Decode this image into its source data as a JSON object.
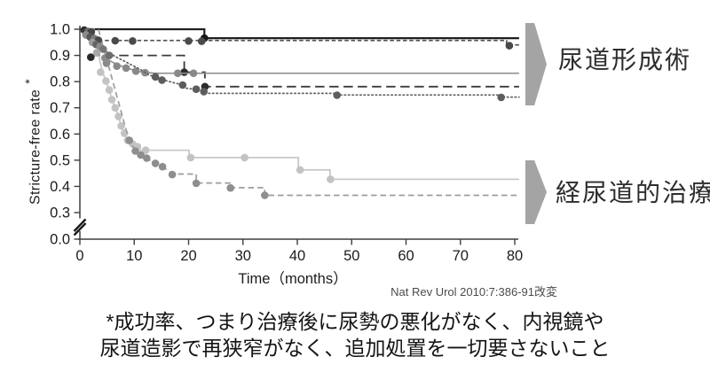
{
  "figure": {
    "y_axis_label": "Stricture-free rate",
    "y_axis_asterisk": "*",
    "x_axis_label": "Time（months）",
    "citation": "Nat Rev Urol 2010:7:386-91改変",
    "group_labels": {
      "upper": "尿道形成術",
      "lower": "経尿道的治療"
    },
    "footnote_line1": "*成功率、つまり治療後に尿勢の悪化がなく、内視鏡や",
    "footnote_line2": "尿道造影で再狭窄がなく、追加処置を一切要さないこと"
  },
  "chart_data": {
    "type": "line",
    "subtype": "kaplan-meier-step-curves",
    "title": "",
    "xlabel": "Time（months）",
    "ylabel": "Stricture-free rate *",
    "x_ticks": [
      {
        "label": "0",
        "value": 0
      },
      {
        "label": "10",
        "value": 10
      },
      {
        "label": "20",
        "value": 20
      },
      {
        "label": "30",
        "value": 30
      },
      {
        "label": "40",
        "value": 40
      },
      {
        "label": "50",
        "value": 50
      },
      {
        "label": "60",
        "value": 60
      },
      {
        "label": "70",
        "value": 70
      },
      {
        "label": "80",
        "value": 80
      }
    ],
    "y_ticks": [
      {
        "label": "1.0",
        "value": 1.0
      },
      {
        "label": "0.9",
        "value": 0.9
      },
      {
        "label": "0.8",
        "value": 0.8
      },
      {
        "label": "0.7",
        "value": 0.7
      },
      {
        "label": "0.6",
        "value": 0.6
      },
      {
        "label": "0.5",
        "value": 0.5
      },
      {
        "label": "0.4",
        "value": 0.4
      },
      {
        "label": "0.3",
        "value": 0.3
      },
      {
        "label": "0.0",
        "value": 0.0
      }
    ],
    "axis_break": "y-axis broken between 0.0 and 0.3",
    "xlim": [
      0,
      81
    ],
    "grid": false,
    "legend": "none (groups annotated with arrows: upper cluster = 尿道形成術, lower cluster = 経尿道的治療)",
    "series": [
      {
        "name": "urethroplasty-a",
        "group": "尿道形成術",
        "style": "solid",
        "color": "#1f1f1f",
        "width": 2.2,
        "marker_color": "#161616",
        "steps": [
          [
            0,
            1.0
          ],
          [
            22.9,
            1.0
          ],
          [
            22.9,
            0.966
          ],
          [
            80.8,
            0.966
          ]
        ],
        "markers": [
          [
            22.9,
            0.966
          ]
        ]
      },
      {
        "name": "urethroplasty-b",
        "group": "尿道形成術",
        "style": "dash-short",
        "color": "#4e4e4e",
        "width": 1.7,
        "marker_color": "#4a4a4a",
        "steps": [
          [
            0.5,
            1.0
          ],
          [
            1.2,
            0.995
          ],
          [
            1.8,
            0.988
          ],
          [
            2.4,
            0.978
          ],
          [
            3.0,
            0.968
          ],
          [
            3.6,
            0.957
          ],
          [
            78.5,
            0.957
          ],
          [
            78.5,
            0.94
          ],
          [
            80.8,
            0.94
          ]
        ],
        "markers": [
          [
            6.5,
            0.956
          ],
          [
            9.7,
            0.955
          ],
          [
            20.0,
            0.955
          ],
          [
            22.4,
            0.954
          ],
          [
            79.0,
            0.937
          ]
        ]
      },
      {
        "name": "urethroplasty-c",
        "group": "尿道形成術",
        "style": "dash-long",
        "color": "#3c3c3c",
        "width": 1.8,
        "marker_color": "#2a2a2a",
        "steps": [
          [
            2.0,
            0.9
          ],
          [
            19.2,
            0.9
          ],
          [
            19.2,
            0.836
          ],
          [
            23.0,
            0.836
          ],
          [
            23.0,
            0.781
          ],
          [
            80.8,
            0.781
          ]
        ],
        "markers": [
          [
            2.0,
            0.893
          ],
          [
            19.2,
            0.836
          ],
          [
            23.0,
            0.781
          ]
        ]
      },
      {
        "name": "urethroplasty-d",
        "group": "尿道形成術",
        "style": "solid",
        "color": "#8f8f8f",
        "width": 1.7,
        "marker_color": "#898989",
        "steps": [
          [
            0.4,
            1.0
          ],
          [
            1.0,
            0.988
          ],
          [
            1.6,
            0.975
          ],
          [
            2.2,
            0.962
          ],
          [
            2.8,
            0.95
          ],
          [
            3.4,
            0.938
          ],
          [
            4.0,
            0.925
          ],
          [
            4.6,
            0.91
          ],
          [
            4.9,
            0.888
          ],
          [
            6.0,
            0.874
          ],
          [
            7.0,
            0.864
          ],
          [
            8.5,
            0.853
          ],
          [
            10.3,
            0.841
          ],
          [
            12.0,
            0.835
          ],
          [
            14.0,
            0.832
          ],
          [
            80.8,
            0.832
          ]
        ],
        "markers": [
          [
            4.9,
            0.87
          ],
          [
            6.8,
            0.859
          ],
          [
            8.5,
            0.852
          ],
          [
            10.3,
            0.84
          ],
          [
            12.0,
            0.834
          ],
          [
            18.0,
            0.832
          ],
          [
            20.9,
            0.832
          ]
        ]
      },
      {
        "name": "urethroplasty-e",
        "group": "尿道形成術",
        "style": "dotted",
        "color": "#616161",
        "width": 1.7,
        "marker_color": "#5d5d5d",
        "steps": [
          [
            1.6,
            0.972
          ],
          [
            2.6,
            0.948
          ],
          [
            3.6,
            0.93
          ],
          [
            5.0,
            0.912
          ],
          [
            6.5,
            0.896
          ],
          [
            8.0,
            0.88
          ],
          [
            9.5,
            0.864
          ],
          [
            11.0,
            0.848
          ],
          [
            12.5,
            0.828
          ],
          [
            14.0,
            0.815
          ],
          [
            15.5,
            0.806
          ],
          [
            17.0,
            0.797
          ],
          [
            18.9,
            0.788
          ],
          [
            19.1,
            0.776
          ],
          [
            21.4,
            0.77
          ],
          [
            22.8,
            0.762
          ],
          [
            23.1,
            0.755
          ],
          [
            47.2,
            0.755
          ],
          [
            47.4,
            0.749
          ],
          [
            77.4,
            0.749
          ],
          [
            77.6,
            0.741
          ],
          [
            80.8,
            0.741
          ]
        ],
        "markers": [
          [
            13.9,
            0.818
          ],
          [
            15.1,
            0.806
          ],
          [
            18.9,
            0.787
          ],
          [
            21.4,
            0.771
          ],
          [
            22.8,
            0.762
          ],
          [
            47.3,
            0.748
          ],
          [
            77.5,
            0.74
          ]
        ]
      },
      {
        "name": "transurethral-a",
        "group": "経尿道的治療",
        "style": "solid",
        "color": "#c8c8c8",
        "width": 1.8,
        "marker_color": "#c3c3c3",
        "steps": [
          [
            0,
            1.0
          ],
          [
            2.4,
            1.0
          ],
          [
            2.8,
            0.968
          ],
          [
            3.3,
            0.92
          ],
          [
            3.7,
            0.876
          ],
          [
            4.2,
            0.836
          ],
          [
            4.8,
            0.802
          ],
          [
            5.4,
            0.768
          ],
          [
            5.9,
            0.731
          ],
          [
            6.5,
            0.7
          ],
          [
            7.1,
            0.667
          ],
          [
            7.6,
            0.631
          ],
          [
            8.2,
            0.603
          ],
          [
            8.8,
            0.576
          ],
          [
            9.6,
            0.562
          ],
          [
            10.4,
            0.545
          ],
          [
            11.2,
            0.538
          ],
          [
            20.1,
            0.538
          ],
          [
            20.1,
            0.51
          ],
          [
            40.2,
            0.51
          ],
          [
            40.2,
            0.463
          ],
          [
            46.0,
            0.463
          ],
          [
            46.0,
            0.427
          ],
          [
            80.8,
            0.427
          ]
        ],
        "markers": [
          [
            3.8,
            0.836
          ],
          [
            4.8,
            0.802
          ],
          [
            5.4,
            0.768
          ],
          [
            5.9,
            0.731
          ],
          [
            6.5,
            0.7
          ],
          [
            7.1,
            0.667
          ],
          [
            7.6,
            0.631
          ],
          [
            8.2,
            0.603
          ],
          [
            8.8,
            0.576
          ],
          [
            9.7,
            0.562
          ],
          [
            10.6,
            0.552
          ],
          [
            12.1,
            0.538
          ],
          [
            20.4,
            0.51
          ],
          [
            30.3,
            0.51
          ],
          [
            40.5,
            0.463
          ],
          [
            46.1,
            0.427
          ]
        ]
      },
      {
        "name": "transurethral-b",
        "group": "経尿道的治療",
        "style": "dashed",
        "color": "#9d9d9d",
        "width": 1.7,
        "marker_color": "#8e8e8e",
        "steps": [
          [
            0,
            1.0
          ],
          [
            3.4,
            1.0
          ],
          [
            4.1,
            0.95
          ],
          [
            4.8,
            0.897
          ],
          [
            5.5,
            0.843
          ],
          [
            6.2,
            0.79
          ],
          [
            6.9,
            0.737
          ],
          [
            7.6,
            0.684
          ],
          [
            8.3,
            0.63
          ],
          [
            9.1,
            0.578
          ],
          [
            10.2,
            0.535
          ],
          [
            11.1,
            0.521
          ],
          [
            12.2,
            0.508
          ],
          [
            13.8,
            0.488
          ],
          [
            15.2,
            0.475
          ],
          [
            16.6,
            0.455
          ],
          [
            17.0,
            0.447
          ],
          [
            21.4,
            0.447
          ],
          [
            21.4,
            0.413
          ],
          [
            27.6,
            0.413
          ],
          [
            27.6,
            0.395
          ],
          [
            34.0,
            0.395
          ],
          [
            34.0,
            0.366
          ],
          [
            80.8,
            0.366
          ]
        ],
        "markers": [
          [
            9.1,
            0.576
          ],
          [
            10.2,
            0.535
          ],
          [
            11.2,
            0.52
          ],
          [
            12.3,
            0.508
          ],
          [
            13.9,
            0.488
          ],
          [
            15.2,
            0.475
          ],
          [
            17.0,
            0.445
          ],
          [
            21.4,
            0.412
          ],
          [
            27.7,
            0.394
          ],
          [
            34.0,
            0.366
          ]
        ]
      }
    ],
    "censor_cluster_dots": [
      [
        0.8,
        0.997,
        "#2f2f2f"
      ],
      [
        1.5,
        0.992,
        "#6d6d6d"
      ],
      [
        2.1,
        0.99,
        "#454545"
      ],
      [
        1.1,
        0.978,
        "#8c8c8c"
      ],
      [
        1.9,
        0.97,
        "#565656"
      ],
      [
        2.7,
        0.964,
        "#7a7a7a"
      ],
      [
        3.4,
        0.958,
        "#4a4a4a"
      ],
      [
        2.3,
        0.95,
        "#9b9b9b"
      ],
      [
        3.0,
        0.942,
        "#646464"
      ],
      [
        3.7,
        0.934,
        "#8c8c8c"
      ],
      [
        4.3,
        0.924,
        "#757575"
      ],
      [
        3.1,
        0.91,
        "#a8a8a8"
      ],
      [
        4.6,
        0.89,
        "#8c8c8c"
      ],
      [
        5.4,
        0.9,
        "#6d6d6d"
      ]
    ],
    "colors": {
      "axis": "#3f3f3f",
      "tick_text": "#1c1c1c",
      "arrow": "#a4a4a4"
    }
  }
}
